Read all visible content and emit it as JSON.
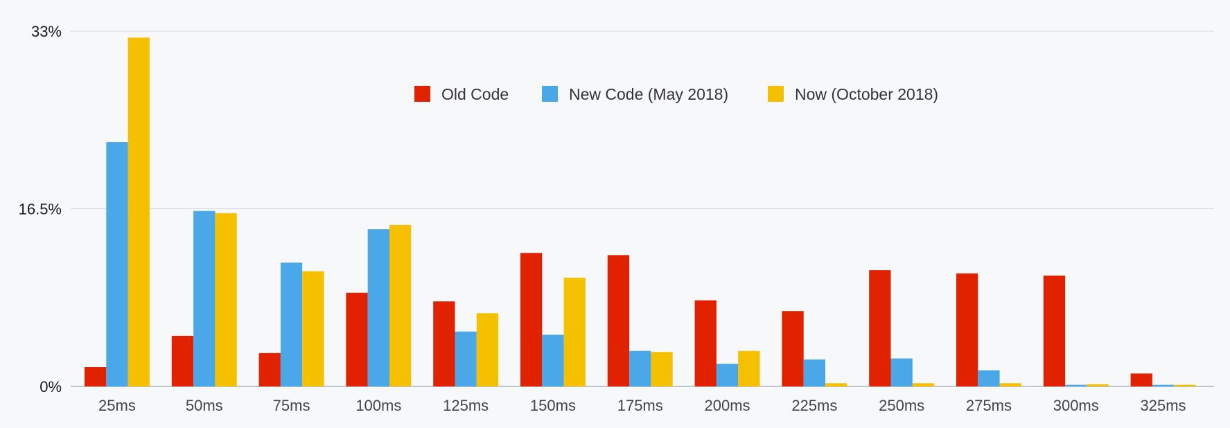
{
  "chart_data": {
    "type": "bar",
    "title": "",
    "xlabel": "",
    "ylabel": "",
    "ylim": [
      0,
      33
    ],
    "y_ticks": [
      {
        "value": 0,
        "label": "0%"
      },
      {
        "value": 16.5,
        "label": "16.5%"
      },
      {
        "value": 33,
        "label": "33%"
      }
    ],
    "grid": true,
    "legend_position": "top-center",
    "categories": [
      "25ms",
      "50ms",
      "75ms",
      "100ms",
      "125ms",
      "150ms",
      "175ms",
      "200ms",
      "225ms",
      "250ms",
      "275ms",
      "300ms",
      "325ms"
    ],
    "series": [
      {
        "name": "Old Code",
        "color": "#e02200",
        "values": [
          1.8,
          4.7,
          3.1,
          8.7,
          7.9,
          12.4,
          12.2,
          8.0,
          7.0,
          10.8,
          10.5,
          10.3,
          1.2
        ]
      },
      {
        "name": "New Code (May 2018)",
        "color": "#4aa8e8",
        "values": [
          22.7,
          16.3,
          11.5,
          14.6,
          5.1,
          4.8,
          3.3,
          2.1,
          2.5,
          2.6,
          1.5,
          0.15,
          0.15
        ]
      },
      {
        "name": "Now (October 2018)",
        "color": "#f5c000",
        "values": [
          32.4,
          16.1,
          10.7,
          15.0,
          6.8,
          10.1,
          3.2,
          3.3,
          0.3,
          0.3,
          0.3,
          0.2,
          0.15
        ]
      }
    ]
  }
}
